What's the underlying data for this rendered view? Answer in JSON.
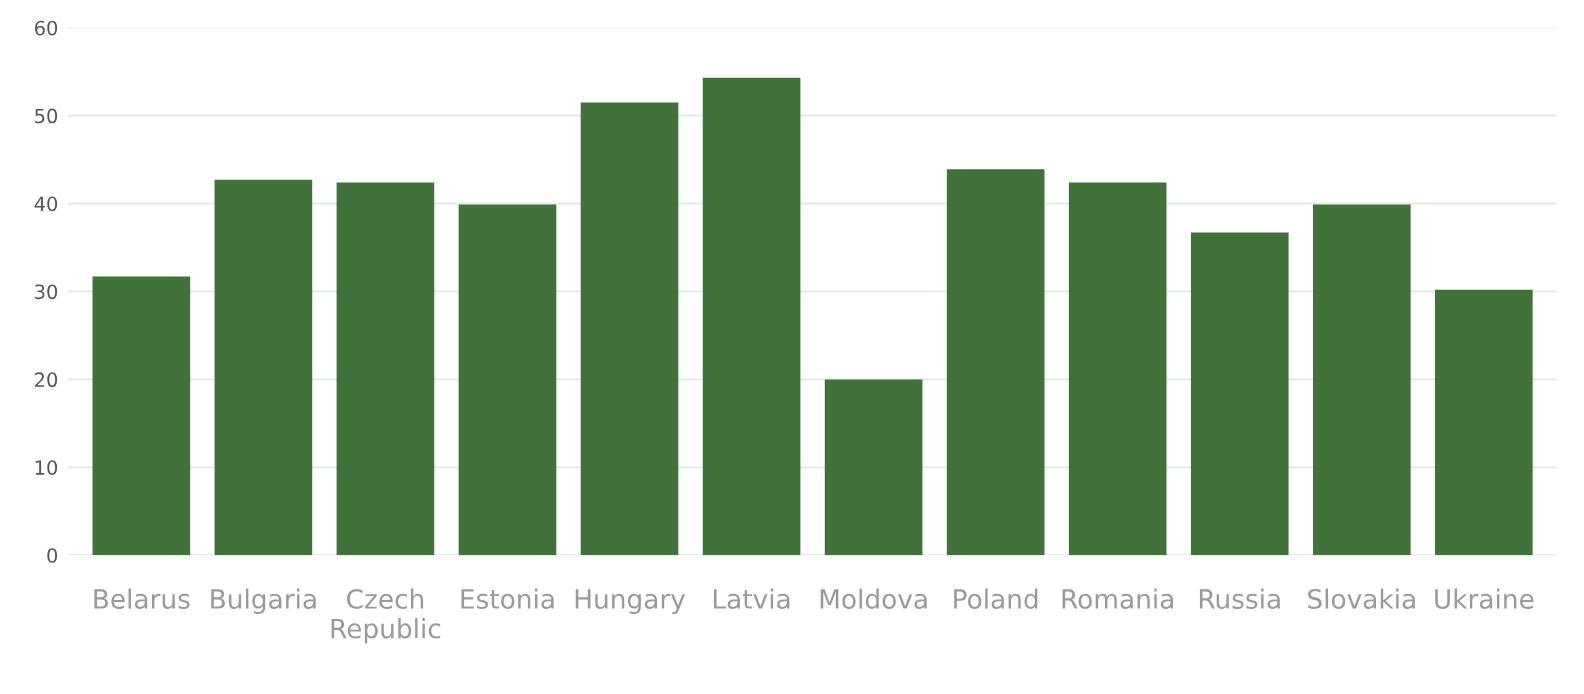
{
  "chart_data": {
    "type": "bar",
    "categories": [
      "Belarus",
      "Bulgaria",
      "Czech\nRepublic",
      "Estonia",
      "Hungary",
      "Latvia",
      "Moldova",
      "Poland",
      "Romania",
      "Russia",
      "Slovakia",
      "Ukraine"
    ],
    "values": [
      31.7,
      42.7,
      42.4,
      39.9,
      51.5,
      54.3,
      20.0,
      43.9,
      42.4,
      36.7,
      39.9,
      30.2
    ],
    "color": "#41723a",
    "ylim": [
      0,
      60
    ],
    "yticks": [
      0,
      10,
      20,
      30,
      40,
      50,
      60
    ],
    "grid": "y",
    "legend": false
  }
}
